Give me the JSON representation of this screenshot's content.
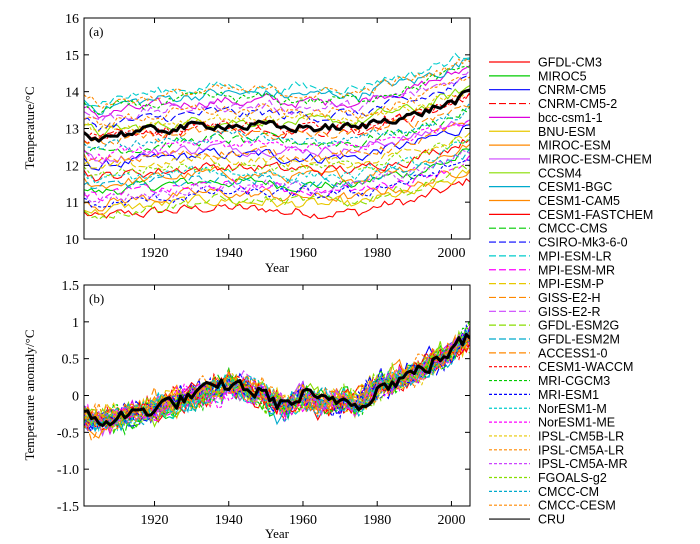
{
  "chart_data": [
    {
      "panel_label": "(a)",
      "type": "line",
      "xlabel": "Year",
      "ylabel": "Temperature/°C",
      "xlim": [
        1901,
        2005
      ],
      "ylim": [
        10,
        16
      ],
      "xticks": [
        1920,
        1940,
        1960,
        1980,
        2000
      ],
      "yticks": [
        10,
        11,
        12,
        13,
        14,
        15,
        16
      ],
      "cru_series": {
        "name": "CRU",
        "x": [
          1901,
          1905,
          1910,
          1915,
          1920,
          1925,
          1930,
          1935,
          1940,
          1945,
          1950,
          1955,
          1960,
          1965,
          1970,
          1975,
          1980,
          1985,
          1990,
          1995,
          2000,
          2005
        ],
        "values": [
          12.9,
          12.75,
          12.85,
          12.9,
          12.95,
          13.0,
          13.05,
          13.1,
          13.1,
          13.05,
          13.1,
          13.0,
          13.05,
          13.0,
          13.05,
          13.0,
          13.2,
          13.3,
          13.35,
          13.55,
          13.7,
          13.95
        ]
      },
      "model_envelope": {
        "start_min": 10.7,
        "start_max": 13.9,
        "end_min": 12.1,
        "end_max": 15.1
      }
    },
    {
      "panel_label": "(b)",
      "type": "line",
      "xlabel": "Year",
      "ylabel": "Temperature anomaly/°C",
      "xlim": [
        1901,
        2005
      ],
      "ylim": [
        -1.5,
        1.5
      ],
      "xticks": [
        1920,
        1940,
        1960,
        1980,
        2000
      ],
      "yticks": [
        -1.5,
        -1.0,
        -0.5,
        0,
        0.5,
        1,
        1.5
      ],
      "ytick_labels": [
        "-1.5",
        "-1.0",
        "-0.5",
        "0",
        "0.5",
        "1",
        "1.5"
      ],
      "cru_series": {
        "name": "CRU",
        "x": [
          1901,
          1905,
          1910,
          1915,
          1920,
          1925,
          1930,
          1935,
          1940,
          1945,
          1950,
          1955,
          1960,
          1965,
          1970,
          1975,
          1980,
          1985,
          1990,
          1995,
          2000,
          2005
        ],
        "values": [
          -0.3,
          -0.35,
          -0.3,
          -0.25,
          -0.15,
          -0.1,
          0.0,
          0.05,
          0.15,
          0.1,
          0.0,
          -0.15,
          0.0,
          -0.1,
          -0.05,
          -0.1,
          0.1,
          0.2,
          0.3,
          0.45,
          0.6,
          0.8
        ]
      }
    }
  ],
  "legend": {
    "placement": "right",
    "entries": [
      {
        "name": "GFDL-CM3",
        "color": "#ff0000",
        "dash": "solid"
      },
      {
        "name": "MIROC5",
        "color": "#00cc00",
        "dash": "solid"
      },
      {
        "name": "CNRM-CM5",
        "color": "#0000ff",
        "dash": "solid"
      },
      {
        "name": "CNRM-CM5-2",
        "color": "#ff0000",
        "dash": "long"
      },
      {
        "name": "bcc-csm1-1",
        "color": "#dd00dd",
        "dash": "solid"
      },
      {
        "name": "BNU-ESM",
        "color": "#e8c800",
        "dash": "solid"
      },
      {
        "name": "MIROC-ESM",
        "color": "#ff8800",
        "dash": "solid"
      },
      {
        "name": "MIROC-ESM-CHEM",
        "color": "#cc44ff",
        "dash": "solid"
      },
      {
        "name": "CCSM4",
        "color": "#88dd00",
        "dash": "solid"
      },
      {
        "name": "CESM1-BGC",
        "color": "#00aacc",
        "dash": "solid"
      },
      {
        "name": "CESM1-CAM5",
        "color": "#ff8800",
        "dash": "solid"
      },
      {
        "name": "CESM1-FASTCHEM",
        "color": "#ff0000",
        "dash": "solid"
      },
      {
        "name": "CMCC-CMS",
        "color": "#00cc00",
        "dash": "long"
      },
      {
        "name": "CSIRO-Mk3-6-0",
        "color": "#0000ff",
        "dash": "long"
      },
      {
        "name": "MPI-ESM-LR",
        "color": "#00cccc",
        "dash": "long"
      },
      {
        "name": "MPI-ESM-MR",
        "color": "#ff00ff",
        "dash": "long"
      },
      {
        "name": "MPI-ESM-P",
        "color": "#e8c800",
        "dash": "long"
      },
      {
        "name": "GISS-E2-H",
        "color": "#ff8800",
        "dash": "long"
      },
      {
        "name": "GISS-E2-R",
        "color": "#cc44ff",
        "dash": "long"
      },
      {
        "name": "GFDL-ESM2G",
        "color": "#88dd00",
        "dash": "long"
      },
      {
        "name": "GFDL-ESM2M",
        "color": "#00aacc",
        "dash": "long"
      },
      {
        "name": "ACCESS1-0",
        "color": "#ff8800",
        "dash": "long"
      },
      {
        "name": "CESM1-WACCM",
        "color": "#ff0000",
        "dash": "short"
      },
      {
        "name": "MRI-CGCM3",
        "color": "#00cc00",
        "dash": "short"
      },
      {
        "name": "MRI-ESM1",
        "color": "#0000ff",
        "dash": "short"
      },
      {
        "name": "NorESM1-M",
        "color": "#00cccc",
        "dash": "short"
      },
      {
        "name": "NorESM1-ME",
        "color": "#ff00ff",
        "dash": "short"
      },
      {
        "name": "IPSL-CM5B-LR",
        "color": "#e8c800",
        "dash": "short"
      },
      {
        "name": "IPSL-CM5A-LR",
        "color": "#ff8800",
        "dash": "short"
      },
      {
        "name": "IPSL-CM5A-MR",
        "color": "#cc44ff",
        "dash": "short"
      },
      {
        "name": "FGOALS-g2",
        "color": "#88dd00",
        "dash": "short"
      },
      {
        "name": "CMCC-CM",
        "color": "#00aacc",
        "dash": "short"
      },
      {
        "name": "CMCC-CESM",
        "color": "#ff8800",
        "dash": "short"
      },
      {
        "name": "CRU",
        "color": "#000000",
        "dash": "solid"
      }
    ]
  }
}
